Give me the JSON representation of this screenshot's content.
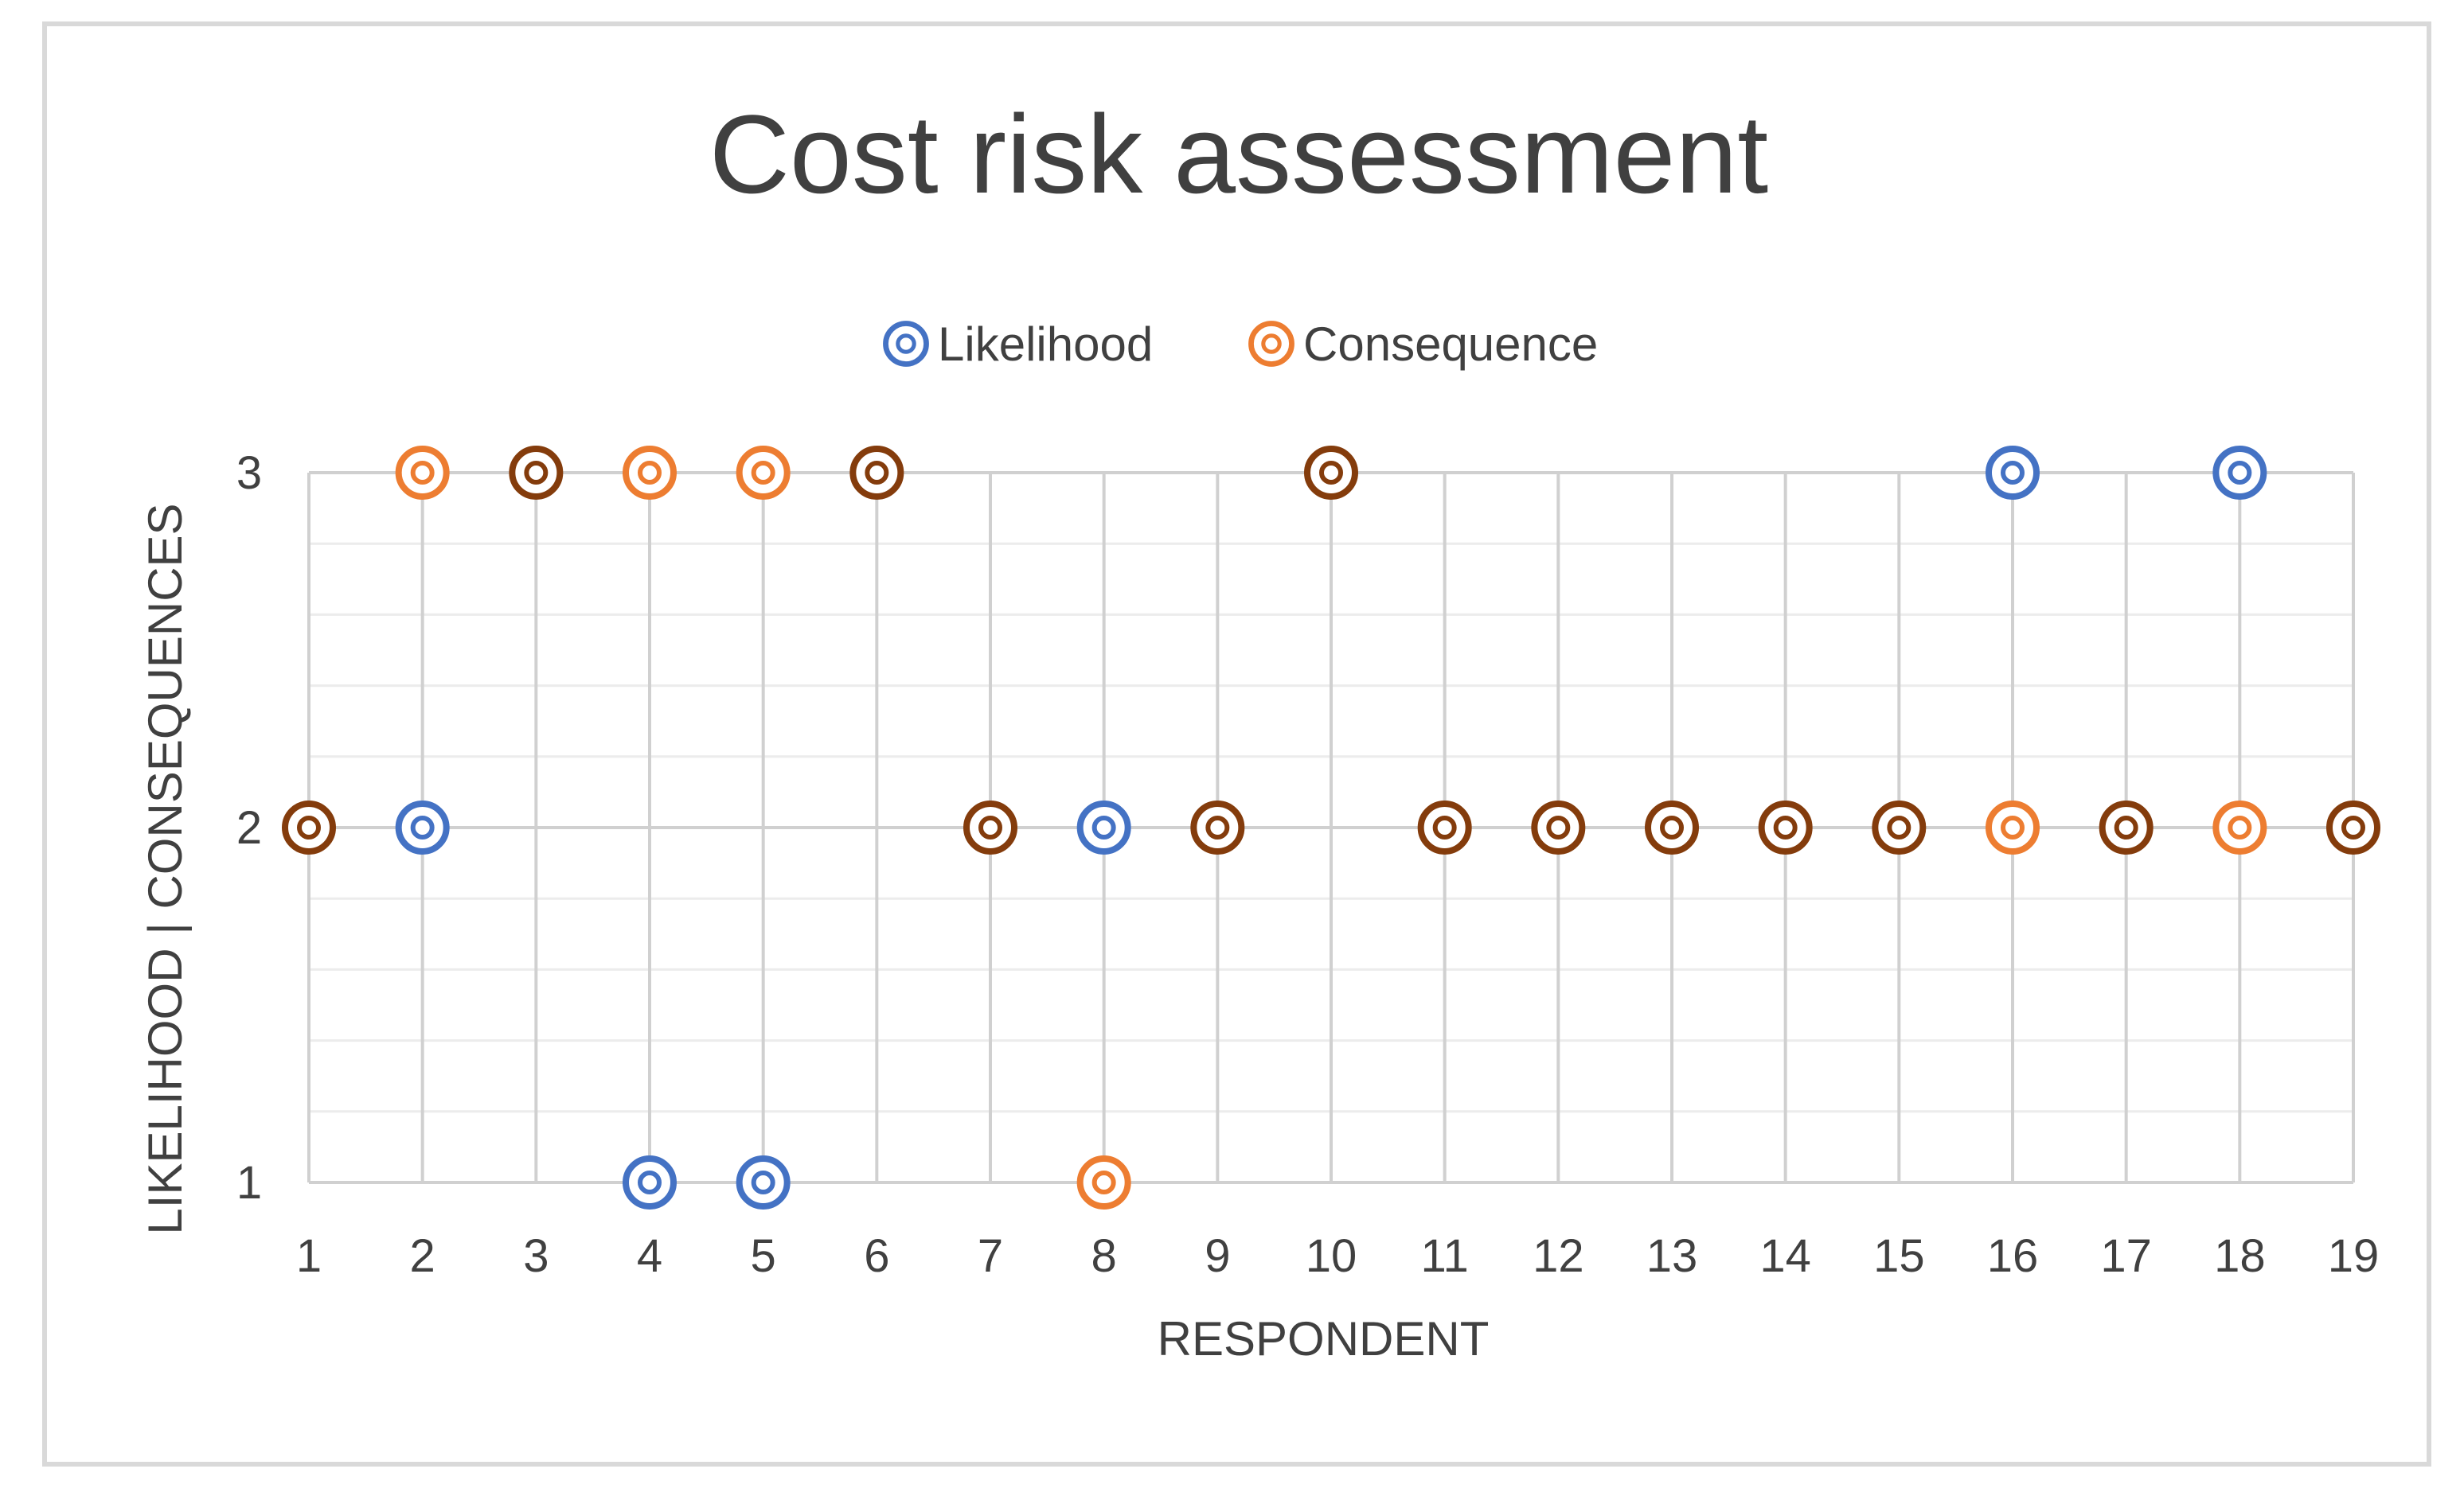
{
  "chart_data": {
    "type": "scatter",
    "title": "Cost risk assessment",
    "xlabel": "RESPONDENT",
    "ylabel": "LIKELIHOOD | CONSEQUENCES",
    "x": [
      1,
      2,
      3,
      4,
      5,
      6,
      7,
      8,
      9,
      10,
      11,
      12,
      13,
      14,
      15,
      16,
      17,
      18,
      19
    ],
    "xlim": [
      1,
      19
    ],
    "ylim": [
      1,
      3
    ],
    "yticks": [
      1,
      2,
      3
    ],
    "grid": true,
    "legend_position": "top-center",
    "series": [
      {
        "name": "Likelihood",
        "color": "#4472C4",
        "values": [
          2,
          2,
          3,
          1,
          1,
          3,
          2,
          2,
          2,
          3,
          2,
          2,
          2,
          2,
          2,
          3,
          2,
          3,
          2
        ]
      },
      {
        "name": "Consequence",
        "color": "#ED7D31",
        "values": [
          2,
          3,
          3,
          3,
          3,
          3,
          2,
          1,
          2,
          3,
          2,
          2,
          2,
          2,
          2,
          2,
          2,
          2,
          2
        ]
      }
    ],
    "overlap_color": "#843C0C"
  }
}
